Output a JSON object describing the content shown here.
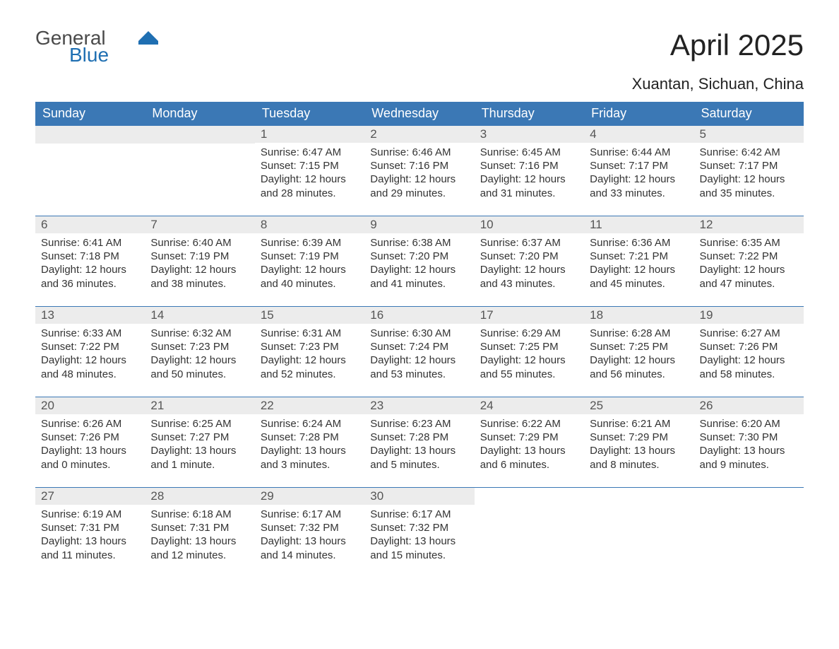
{
  "logo": {
    "line1": "General",
    "line2": "Blue"
  },
  "title": "April 2025",
  "location": "Xuantan, Sichuan, China",
  "colors": {
    "header_bg": "#3b78b5",
    "header_text": "#ffffff",
    "daynum_bg": "#ececec",
    "row_divider": "#3b78b5",
    "body_text": "#333333",
    "logo_gray": "#4a4a4a",
    "logo_blue": "#1f6fb2"
  },
  "dayNames": [
    "Sunday",
    "Monday",
    "Tuesday",
    "Wednesday",
    "Thursday",
    "Friday",
    "Saturday"
  ],
  "layout": {
    "first_weekday_index": 2,
    "days_in_month": 30
  },
  "days": {
    "1": {
      "sunrise": "6:47 AM",
      "sunset": "7:15 PM",
      "daylight": "12 hours and 28 minutes."
    },
    "2": {
      "sunrise": "6:46 AM",
      "sunset": "7:16 PM",
      "daylight": "12 hours and 29 minutes."
    },
    "3": {
      "sunrise": "6:45 AM",
      "sunset": "7:16 PM",
      "daylight": "12 hours and 31 minutes."
    },
    "4": {
      "sunrise": "6:44 AM",
      "sunset": "7:17 PM",
      "daylight": "12 hours and 33 minutes."
    },
    "5": {
      "sunrise": "6:42 AM",
      "sunset": "7:17 PM",
      "daylight": "12 hours and 35 minutes."
    },
    "6": {
      "sunrise": "6:41 AM",
      "sunset": "7:18 PM",
      "daylight": "12 hours and 36 minutes."
    },
    "7": {
      "sunrise": "6:40 AM",
      "sunset": "7:19 PM",
      "daylight": "12 hours and 38 minutes."
    },
    "8": {
      "sunrise": "6:39 AM",
      "sunset": "7:19 PM",
      "daylight": "12 hours and 40 minutes."
    },
    "9": {
      "sunrise": "6:38 AM",
      "sunset": "7:20 PM",
      "daylight": "12 hours and 41 minutes."
    },
    "10": {
      "sunrise": "6:37 AM",
      "sunset": "7:20 PM",
      "daylight": "12 hours and 43 minutes."
    },
    "11": {
      "sunrise": "6:36 AM",
      "sunset": "7:21 PM",
      "daylight": "12 hours and 45 minutes."
    },
    "12": {
      "sunrise": "6:35 AM",
      "sunset": "7:22 PM",
      "daylight": "12 hours and 47 minutes."
    },
    "13": {
      "sunrise": "6:33 AM",
      "sunset": "7:22 PM",
      "daylight": "12 hours and 48 minutes."
    },
    "14": {
      "sunrise": "6:32 AM",
      "sunset": "7:23 PM",
      "daylight": "12 hours and 50 minutes."
    },
    "15": {
      "sunrise": "6:31 AM",
      "sunset": "7:23 PM",
      "daylight": "12 hours and 52 minutes."
    },
    "16": {
      "sunrise": "6:30 AM",
      "sunset": "7:24 PM",
      "daylight": "12 hours and 53 minutes."
    },
    "17": {
      "sunrise": "6:29 AM",
      "sunset": "7:25 PM",
      "daylight": "12 hours and 55 minutes."
    },
    "18": {
      "sunrise": "6:28 AM",
      "sunset": "7:25 PM",
      "daylight": "12 hours and 56 minutes."
    },
    "19": {
      "sunrise": "6:27 AM",
      "sunset": "7:26 PM",
      "daylight": "12 hours and 58 minutes."
    },
    "20": {
      "sunrise": "6:26 AM",
      "sunset": "7:26 PM",
      "daylight": "13 hours and 0 minutes."
    },
    "21": {
      "sunrise": "6:25 AM",
      "sunset": "7:27 PM",
      "daylight": "13 hours and 1 minute."
    },
    "22": {
      "sunrise": "6:24 AM",
      "sunset": "7:28 PM",
      "daylight": "13 hours and 3 minutes."
    },
    "23": {
      "sunrise": "6:23 AM",
      "sunset": "7:28 PM",
      "daylight": "13 hours and 5 minutes."
    },
    "24": {
      "sunrise": "6:22 AM",
      "sunset": "7:29 PM",
      "daylight": "13 hours and 6 minutes."
    },
    "25": {
      "sunrise": "6:21 AM",
      "sunset": "7:29 PM",
      "daylight": "13 hours and 8 minutes."
    },
    "26": {
      "sunrise": "6:20 AM",
      "sunset": "7:30 PM",
      "daylight": "13 hours and 9 minutes."
    },
    "27": {
      "sunrise": "6:19 AM",
      "sunset": "7:31 PM",
      "daylight": "13 hours and 11 minutes."
    },
    "28": {
      "sunrise": "6:18 AM",
      "sunset": "7:31 PM",
      "daylight": "13 hours and 12 minutes."
    },
    "29": {
      "sunrise": "6:17 AM",
      "sunset": "7:32 PM",
      "daylight": "13 hours and 14 minutes."
    },
    "30": {
      "sunrise": "6:17 AM",
      "sunset": "7:32 PM",
      "daylight": "13 hours and 15 minutes."
    }
  },
  "labels": {
    "sunrise": "Sunrise:",
    "sunset": "Sunset:",
    "daylight": "Daylight:"
  }
}
